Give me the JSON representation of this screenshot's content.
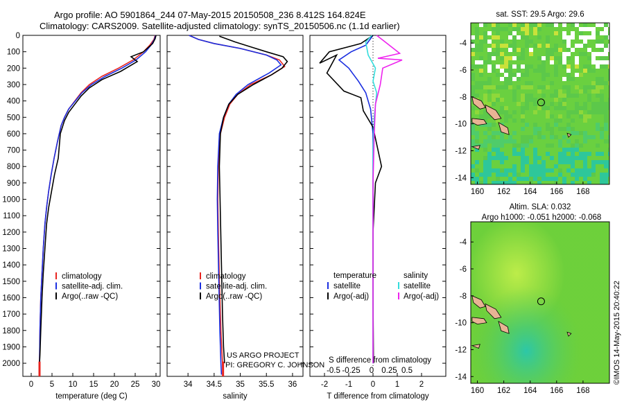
{
  "header": {
    "line1": "Argo profile: AO 5901864_244 07-May-2015 20150508_236 8.412S 164.824E",
    "line2": "Climatology: CARS2009. Satellite-adjusted climatology: synTS_20150506.nc (1.1d earlier)"
  },
  "credit": {
    "project": "US ARGO PROJECT",
    "pi": "PI: GREGORY C. JOHNSON",
    "imos": "©IMOS 14-May-2015 20:40:22"
  },
  "colors": {
    "climatology": "#e8241f",
    "satellite_adj": "#1a2ee0",
    "argo": "#000000",
    "salinity_sat": "#33dddd",
    "salinity_argo": "#ee22ee"
  },
  "chart_data": [
    {
      "id": "temperature",
      "type": "line",
      "xlabel": "temperature (deg C)",
      "xlim": [
        -2,
        31
      ],
      "ylim": [
        2080,
        0
      ],
      "xticks": [
        0,
        5,
        10,
        15,
        20,
        25,
        30
      ],
      "yticks": [
        0,
        100,
        200,
        300,
        400,
        500,
        600,
        700,
        800,
        900,
        1000,
        1100,
        1200,
        1300,
        1400,
        1500,
        1600,
        1700,
        1800,
        1900,
        2000
      ],
      "legend": [
        "climatology",
        "satellite-adj. clim.",
        "Argo(..raw -QC)"
      ],
      "series": [
        {
          "name": "climatology",
          "x": [
            29.8,
            29.5,
            28.5,
            27.0,
            24.5,
            21.0,
            17.0,
            14.0,
            12.0,
            10.5,
            9.0,
            8.0,
            7.2,
            6.3,
            5.5,
            4.8,
            4.2,
            3.7,
            3.3,
            2.9,
            2.6,
            2.3,
            2.1,
            2.0,
            2.0
          ],
          "y": [
            0,
            25,
            60,
            100,
            150,
            200,
            250,
            300,
            350,
            400,
            450,
            500,
            550,
            650,
            750,
            850,
            950,
            1050,
            1150,
            1300,
            1450,
            1600,
            1800,
            2000,
            2070
          ]
        },
        {
          "name": "satellite-adj. clim.",
          "x": [
            29.9,
            29.6,
            28.8,
            27.5,
            25.2,
            21.8,
            17.8,
            14.5,
            12.2,
            10.6,
            9.0,
            8.0,
            7.2,
            6.3,
            5.5,
            4.8,
            4.2,
            3.7,
            3.3,
            2.9,
            2.6,
            2.3,
            2.1,
            2.0,
            2.0
          ],
          "y": [
            0,
            25,
            60,
            100,
            150,
            200,
            250,
            300,
            350,
            400,
            450,
            500,
            550,
            650,
            750,
            850,
            950,
            1050,
            1150,
            1300,
            1450,
            1600,
            1800,
            2000,
            2070
          ]
        },
        {
          "name": "Argo(..raw -QC)",
          "x": [
            30.0,
            29.8,
            29.2,
            27.0,
            24.0,
            25.5,
            21.5,
            17.0,
            14.0,
            12.0,
            10.5,
            9.0,
            8.0,
            7.0,
            6.5,
            5.6,
            4.9,
            4.2,
            3.7,
            3.3,
            2.9,
            2.6,
            2.3,
            2.1,
            2.0
          ],
          "y": [
            0,
            20,
            50,
            100,
            130,
            160,
            220,
            270,
            320,
            370,
            420,
            470,
            520,
            600,
            750,
            850,
            950,
            1050,
            1150,
            1300,
            1450,
            1600,
            1800,
            1950,
            2000
          ]
        }
      ]
    },
    {
      "id": "salinity",
      "type": "line",
      "xlabel": "salinity",
      "xlim": [
        33.6,
        36.2
      ],
      "ylim": [
        2080,
        0
      ],
      "xticks": [
        34,
        34.5,
        35,
        35.5,
        36
      ],
      "xticklabels": [
        "34",
        "34.5",
        "35",
        "35.5",
        "36"
      ],
      "legend": [
        "climatology",
        "satellite-adj. clim.",
        "Argo(..raw -QC)"
      ],
      "series": [
        {
          "name": "climatology",
          "x": [
            34.02,
            34.2,
            34.5,
            35.0,
            35.5,
            35.75,
            35.85,
            35.6,
            35.2,
            34.95,
            34.8,
            34.7,
            34.62,
            34.58,
            34.57,
            34.58,
            34.6,
            34.63,
            34.66,
            34.67
          ],
          "y": [
            0,
            25,
            50,
            80,
            120,
            150,
            190,
            240,
            300,
            360,
            420,
            500,
            600,
            800,
            1000,
            1200,
            1500,
            1800,
            2000,
            2070
          ]
        },
        {
          "name": "satellite-adj. clim.",
          "x": [
            34.02,
            34.2,
            34.5,
            35.0,
            35.5,
            35.7,
            35.78,
            35.55,
            35.15,
            34.92,
            34.78,
            34.68,
            34.6,
            34.57,
            34.56,
            34.57,
            34.59,
            34.61,
            34.63,
            34.64
          ],
          "y": [
            0,
            25,
            50,
            80,
            120,
            150,
            180,
            230,
            300,
            360,
            420,
            500,
            600,
            800,
            1000,
            1200,
            1500,
            1800,
            2000,
            2070
          ]
        },
        {
          "name": "Argo(..raw -QC)",
          "x": [
            34.6,
            34.9,
            35.2,
            35.5,
            35.82,
            35.9,
            35.8,
            35.6,
            35.25,
            34.95,
            34.78,
            34.68,
            34.62,
            34.6,
            34.62,
            34.64,
            34.66,
            34.68,
            34.7
          ],
          "y": [
            5,
            40,
            70,
            100,
            130,
            160,
            200,
            240,
            300,
            360,
            420,
            500,
            600,
            800,
            1100,
            1400,
            1700,
            1900,
            2000
          ]
        }
      ]
    },
    {
      "id": "difference",
      "type": "line",
      "xlabel": "T difference from climatology",
      "xlabel_top": "S difference from climatology",
      "xlim": [
        -2.6,
        3.0
      ],
      "ylim": [
        2080,
        0
      ],
      "xticks": [
        -2,
        -1,
        0,
        1,
        2
      ],
      "xticklabels": [
        "-2",
        "-1",
        "0",
        "1",
        "2"
      ],
      "sticks": [
        "-0.5",
        "-0.25",
        "0",
        "0.25",
        "0.5"
      ],
      "legend_left_title": "temperature",
      "legend_left": [
        "satellite",
        "Argo(-adj)"
      ],
      "legend_right_title": "salinity",
      "legend_right": [
        "satellite",
        "Argo(-adj)"
      ],
      "series": [
        {
          "name": "temperature satellite",
          "x": [
            0.0,
            -0.3,
            -0.9,
            -1.4,
            -1.0,
            -0.6,
            -0.3,
            -0.1,
            0.0,
            0.0,
            0.0,
            0.0
          ],
          "y": [
            0,
            60,
            100,
            150,
            200,
            280,
            350,
            450,
            600,
            900,
            1500,
            2000
          ]
        },
        {
          "name": "temperature Argo(-adj)",
          "x": [
            0.0,
            -0.5,
            -1.8,
            -2.2,
            -1.5,
            -1.9,
            -1.2,
            -0.5,
            -0.4,
            0.0,
            0.35,
            0.1,
            0.0,
            0.0,
            0.02
          ],
          "y": [
            0,
            50,
            100,
            170,
            120,
            230,
            340,
            380,
            460,
            560,
            800,
            900,
            1200,
            1600,
            2000
          ]
        },
        {
          "name": "salinity satellite",
          "x": [
            -0.05,
            -0.3,
            -0.2,
            0.1,
            0.0,
            0.15,
            0.05,
            0.0,
            0.0,
            0.0
          ],
          "y": [
            0,
            40,
            120,
            200,
            280,
            350,
            500,
            700,
            1000,
            2000
          ]
        },
        {
          "name": "salinity Argo(-adj)",
          "x": [
            0.15,
            0.5,
            1.1,
            0.2,
            1.2,
            0.4,
            0.3,
            0.1,
            0.05,
            0.0,
            0.0,
            0.0
          ],
          "y": [
            0,
            40,
            110,
            140,
            150,
            200,
            300,
            420,
            600,
            900,
            1400,
            2000
          ]
        }
      ]
    }
  ],
  "maps": [
    {
      "id": "sst-map",
      "title": "sat. SST: 29.5 Argo: 29.6",
      "subtitle": "",
      "xticks": [
        "160",
        "162",
        "164",
        "166",
        "168"
      ],
      "yticks": [
        "-4",
        "-6",
        "-8",
        "-10",
        "-12",
        "-14"
      ],
      "xlim": [
        159.5,
        170
      ],
      "ylim": [
        -14.5,
        -2.5
      ],
      "float_position": [
        164.824,
        -8.412
      ]
    },
    {
      "id": "sla-map",
      "title": "Altim. SLA: 0.032",
      "subtitle": "Argo h1000: -0.051 h2000: -0.068",
      "xticks": [
        "160",
        "162",
        "164",
        "166",
        "168"
      ],
      "yticks": [
        "-4",
        "-6",
        "-8",
        "-10",
        "-12",
        "-14"
      ],
      "xlim": [
        159.5,
        170
      ],
      "ylim": [
        -14.5,
        -2.5
      ],
      "float_position": [
        164.824,
        -8.412
      ]
    }
  ]
}
